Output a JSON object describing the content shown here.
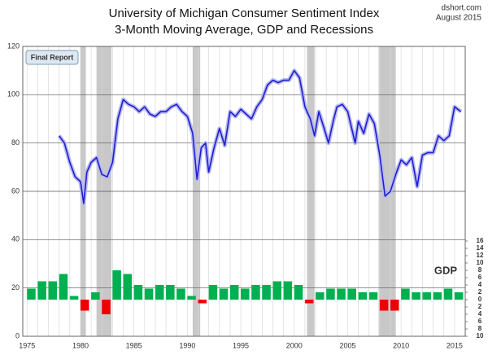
{
  "chart_data": {
    "type": "line",
    "title": "University of Michigan Consumer Sentiment Index",
    "subtitle": "3-Month Moving Average, GDP and Recessions",
    "source": "dshort.com",
    "date": "August 2015",
    "annotation": "Final Report",
    "xlim": [
      1974.6,
      2016
    ],
    "xticks": [
      1975,
      1980,
      1985,
      1990,
      1995,
      2000,
      2005,
      2010,
      2015
    ],
    "xminor_ticks": [
      1975,
      1976,
      1977,
      1978,
      1979,
      1980,
      1981,
      1982,
      1983,
      1984,
      1985,
      1986,
      1987,
      1988,
      1989,
      1990,
      1991,
      1992,
      1993,
      1994,
      1995,
      1996,
      1997,
      1998,
      1999,
      2000,
      2001,
      2002,
      2003,
      2004,
      2005,
      2006,
      2007,
      2008,
      2009,
      2010,
      2011,
      2012,
      2013,
      2014,
      2015
    ],
    "ylim": [
      0,
      120
    ],
    "yticks": [
      0,
      20,
      40,
      60,
      80,
      100,
      120
    ],
    "y2lim": [
      -10,
      69.1
    ],
    "y2ticks": [
      {
        "value": -10,
        "label": "10"
      },
      {
        "value": -8,
        "label": "8"
      },
      {
        "value": -6,
        "label": "6"
      },
      {
        "value": -4,
        "label": "4"
      },
      {
        "value": -2,
        "label": "2"
      },
      0,
      2,
      4,
      6,
      8,
      10,
      12,
      14,
      16
    ],
    "grid": true,
    "recession_color": "#c8c8c8",
    "recessions": [
      [
        1980.0,
        1980.5
      ],
      [
        1981.5,
        1982.9
      ],
      [
        1990.5,
        1991.2
      ],
      [
        2001.2,
        2001.9
      ],
      [
        2007.9,
        2009.5
      ]
    ],
    "series": [
      {
        "color": "#1f1fd0",
        "x": [
          1978.0,
          1978.5,
          1979.0,
          1979.5,
          1980.0,
          1980.3,
          1980.6,
          1981.0,
          1981.5,
          1982.0,
          1982.5,
          1983.0,
          1983.5,
          1984.0,
          1984.5,
          1985.0,
          1985.5,
          1986.0,
          1986.5,
          1987.0,
          1987.5,
          1988.0,
          1988.5,
          1989.0,
          1989.5,
          1990.0,
          1990.5,
          1990.9,
          1991.3,
          1991.7,
          1992.0,
          1992.5,
          1993.0,
          1993.5,
          1994.0,
          1994.5,
          1995.0,
          1995.5,
          1996.0,
          1996.5,
          1997.0,
          1997.5,
          1998.0,
          1998.5,
          1999.0,
          1999.5,
          2000.0,
          2000.5,
          2001.0,
          2001.5,
          2001.9,
          2002.3,
          2002.8,
          2003.2,
          2003.7,
          2004.0,
          2004.5,
          2005.0,
          2005.7,
          2006.0,
          2006.5,
          2007.0,
          2007.5,
          2008.0,
          2008.5,
          2009.0,
          2009.5,
          2010.0,
          2010.5,
          2011.0,
          2011.5,
          2012.0,
          2012.5,
          2013.0,
          2013.5,
          2014.0,
          2014.5,
          2015.0,
          2015.6
        ],
        "values": [
          83,
          80,
          72,
          66,
          64,
          55,
          68,
          72,
          74,
          67,
          66,
          72,
          90,
          98,
          96,
          95,
          93,
          95,
          92,
          91,
          93,
          93,
          95,
          96,
          93,
          91,
          84,
          65,
          78,
          80,
          68,
          78,
          86,
          79,
          93,
          91,
          94,
          92,
          90,
          95,
          98,
          104,
          106,
          105,
          106,
          106,
          110,
          107,
          95,
          90,
          83,
          93,
          86,
          80,
          90,
          95,
          96,
          93,
          80,
          89,
          84,
          92,
          88,
          75,
          58,
          60,
          67,
          73,
          71,
          74,
          62,
          75,
          76,
          76,
          83,
          81,
          83,
          95,
          93
        ]
      },
      {
        "name": "GDP",
        "type": "bar",
        "axis": "y2",
        "color": "#00b050",
        "negative_color": "#ee0000",
        "x": [
          1975,
          1976,
          1977,
          1978,
          1979,
          1980,
          1981,
          1982,
          1983,
          1984,
          1985,
          1986,
          1987,
          1988,
          1989,
          1990,
          1991,
          1992,
          1993,
          1994,
          1995,
          1996,
          1997,
          1998,
          1999,
          2000,
          2001,
          2002,
          2003,
          2004,
          2005,
          2006,
          2007,
          2008,
          2009,
          2010,
          2011,
          2012,
          2013,
          2014,
          2015
        ],
        "values": [
          3,
          5,
          5,
          7,
          1,
          -3,
          2,
          -4,
          8,
          7,
          4,
          3,
          4,
          4,
          3,
          1,
          -1,
          4,
          3,
          4,
          3,
          4,
          4,
          5,
          5,
          4,
          -1,
          2,
          3,
          3,
          3,
          2,
          2,
          -3,
          -3,
          3,
          2,
          2,
          2,
          3,
          2
        ]
      }
    ]
  }
}
